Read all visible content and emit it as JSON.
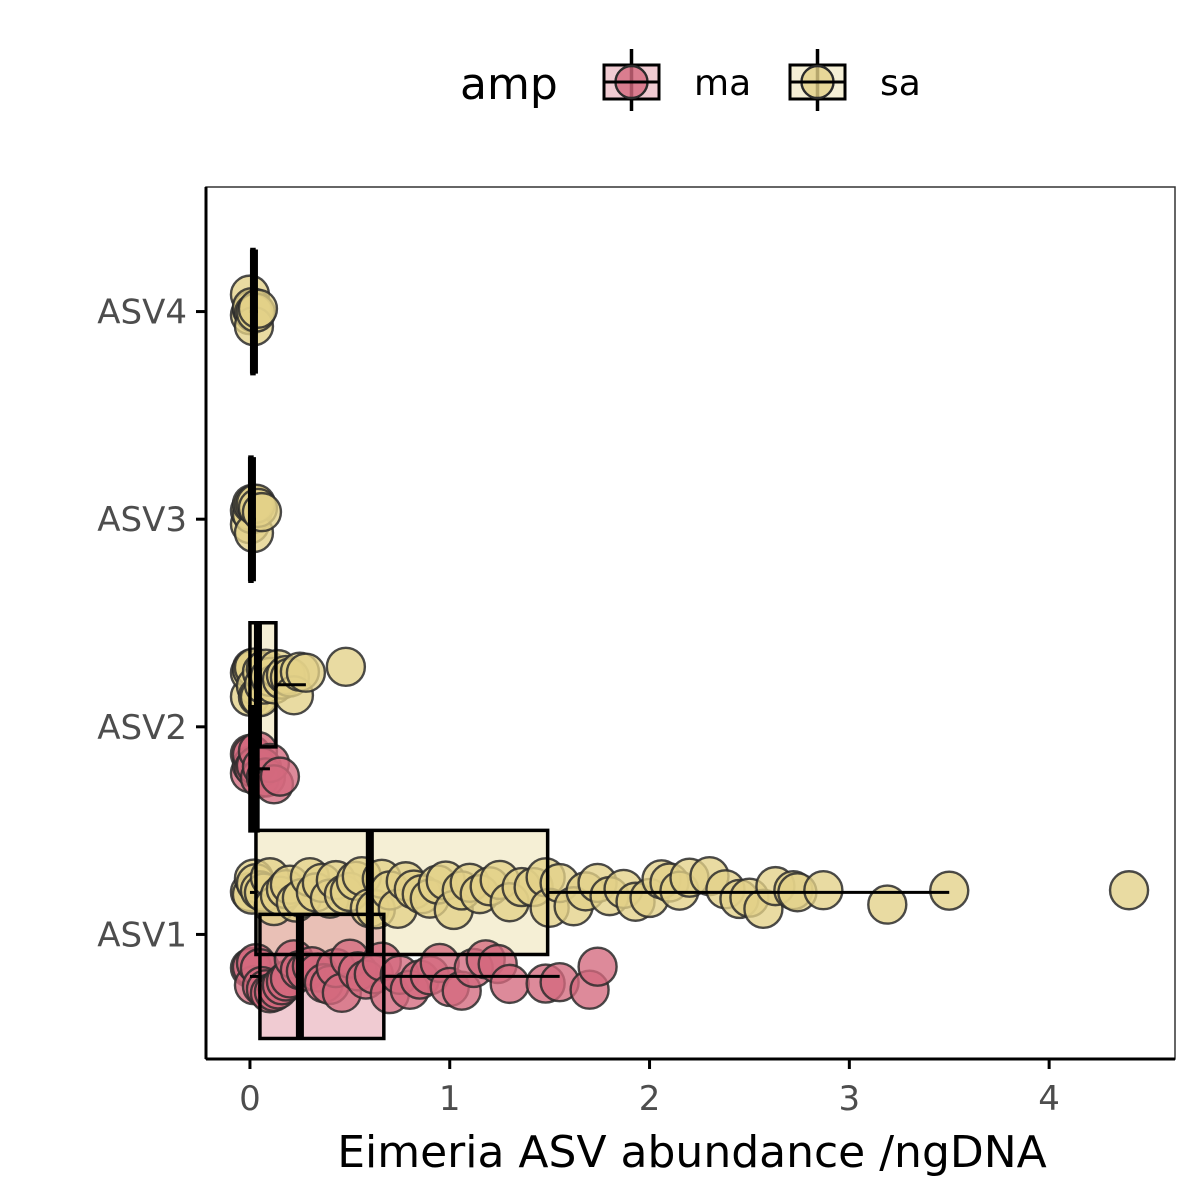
{
  "chart_data": {
    "type": "boxplot-with-jitter",
    "orientation": "horizontal",
    "title": "",
    "xlabel": "Eimeria ASV abundance /ngDNA",
    "ylabel": "",
    "xlim": [
      -0.22,
      4.63
    ],
    "x_ticks": [
      0,
      1,
      2,
      3,
      4
    ],
    "x_tick_labels": [
      "0",
      "1",
      "2",
      "3",
      "4"
    ],
    "categories": [
      "ASV1",
      "ASV2",
      "ASV3",
      "ASV4"
    ],
    "grid": false,
    "legend": {
      "title": "amp",
      "position": "top",
      "entries": [
        {
          "key": "ma",
          "label": "ma"
        },
        {
          "key": "sa",
          "label": "sa"
        }
      ]
    },
    "colors": {
      "ma": "#d4697e",
      "sa": "#e3d188"
    },
    "boxes": [
      {
        "category": "ASV1",
        "group": "sa",
        "whisker_low": 0.0,
        "q1": 0.03,
        "median": 0.6,
        "q3": 1.49,
        "whisker_high": 3.5
      },
      {
        "category": "ASV1",
        "group": "ma",
        "whisker_low": 0.0,
        "q1": 0.05,
        "median": 0.25,
        "q3": 0.67,
        "whisker_high": 1.55
      },
      {
        "category": "ASV2",
        "group": "sa",
        "whisker_low": 0.0,
        "q1": 0.0,
        "median": 0.04,
        "q3": 0.13,
        "whisker_high": 0.28
      },
      {
        "category": "ASV2",
        "group": "ma",
        "whisker_low": 0.0,
        "q1": 0.0,
        "median": 0.02,
        "q3": 0.04,
        "whisker_high": 0.1
      },
      {
        "category": "ASV3",
        "group": "sa",
        "whisker_low": 0.0,
        "q1": 0.0,
        "median": 0.01,
        "q3": 0.01,
        "whisker_high": 0.03
      },
      {
        "category": "ASV4",
        "group": "sa",
        "whisker_low": 0.0,
        "q1": 0.01,
        "median": 0.02,
        "q3": 0.02,
        "whisker_high": 0.04
      }
    ],
    "points": {
      "ASV1": {
        "sa": [
          0.0,
          0.01,
          0.02,
          0.03,
          0.05,
          0.07,
          0.1,
          0.12,
          0.15,
          0.18,
          0.2,
          0.23,
          0.26,
          0.3,
          0.33,
          0.36,
          0.4,
          0.43,
          0.47,
          0.5,
          0.53,
          0.56,
          0.6,
          0.63,
          0.66,
          0.7,
          0.74,
          0.78,
          0.82,
          0.86,
          0.9,
          0.94,
          0.98,
          1.02,
          1.06,
          1.1,
          1.15,
          1.2,
          1.25,
          1.3,
          1.36,
          1.42,
          1.48,
          1.5,
          1.55,
          1.62,
          1.68,
          1.74,
          1.8,
          1.87,
          1.93,
          2.0,
          2.06,
          2.1,
          2.15,
          2.2,
          2.3,
          2.38,
          2.45,
          2.5,
          2.57,
          2.63,
          2.72,
          2.74,
          2.87,
          3.19,
          3.5,
          4.4
        ],
        "ma": [
          0.0,
          0.01,
          0.02,
          0.03,
          0.05,
          0.06,
          0.08,
          0.1,
          0.12,
          0.14,
          0.16,
          0.18,
          0.2,
          0.22,
          0.25,
          0.28,
          0.31,
          0.34,
          0.37,
          0.4,
          0.43,
          0.46,
          0.5,
          0.54,
          0.58,
          0.62,
          0.66,
          0.7,
          0.75,
          0.8,
          0.85,
          0.9,
          0.95,
          1.0,
          1.06,
          1.12,
          1.18,
          1.24,
          1.3,
          1.48,
          1.55,
          1.7,
          1.74
        ]
      },
      "ASV2": {
        "sa": [
          0.0,
          0.0,
          0.01,
          0.01,
          0.02,
          0.03,
          0.04,
          0.05,
          0.06,
          0.07,
          0.08,
          0.1,
          0.12,
          0.14,
          0.16,
          0.18,
          0.2,
          0.22,
          0.25,
          0.28,
          0.48
        ],
        "ma": [
          0.0,
          0.0,
          0.01,
          0.01,
          0.02,
          0.03,
          0.04,
          0.05,
          0.06,
          0.08,
          0.1,
          0.12,
          0.15
        ]
      },
      "ASV3": {
        "sa": [
          0.0,
          0.0,
          0.01,
          0.01,
          0.02,
          0.02,
          0.03,
          0.04,
          0.06
        ]
      },
      "ASV4": {
        "sa": [
          0.0,
          0.0,
          0.01,
          0.01,
          0.02,
          0.02,
          0.03,
          0.04
        ]
      }
    }
  }
}
